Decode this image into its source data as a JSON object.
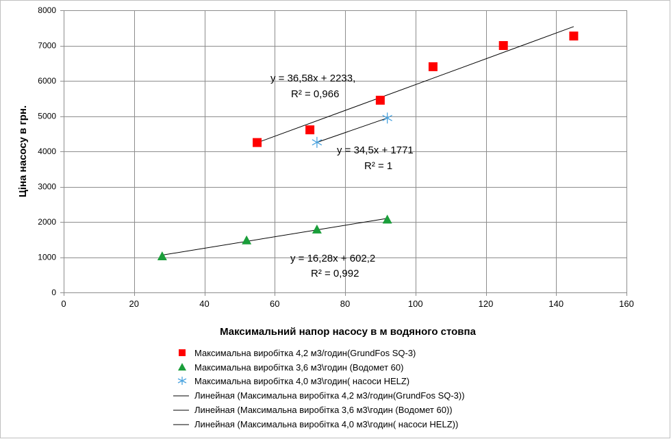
{
  "chart_data": {
    "type": "scatter",
    "xlabel": "Максимальний напор насосу в м водяного стовпа",
    "ylabel": "Ціна насосу  в грн.",
    "xlim": [
      0,
      160
    ],
    "ylim": [
      0,
      8000
    ],
    "xticks": [
      0,
      20,
      40,
      60,
      80,
      100,
      120,
      140,
      160
    ],
    "yticks": [
      0,
      1000,
      2000,
      3000,
      4000,
      5000,
      6000,
      7000,
      8000
    ],
    "grid": true,
    "legend_position": "bottom",
    "series": [
      {
        "name": "Максимальна виробітка 4,2 м3/годин(GrundFos SQ-3)",
        "marker": "square",
        "color": "#ff0000",
        "points": [
          [
            55,
            4250
          ],
          [
            70,
            4610
          ],
          [
            90,
            5450
          ],
          [
            105,
            6400
          ],
          [
            125,
            7000
          ],
          [
            145,
            7270
          ]
        ],
        "trend": {
          "name": "Линейная (Максимальна виробітка 4,2 м3/годин(GrundFos SQ-3))",
          "slope": 36.58,
          "intercept": 2233,
          "x_range": [
            55,
            145
          ],
          "equation": "y = 36,58x + 2233,",
          "r2": "R² = 0,966"
        }
      },
      {
        "name": "Максимальна виробітка 3,6 м3\\годин (Водомет 60)",
        "marker": "triangle",
        "color": "#1a9e3a",
        "points": [
          [
            28,
            1030
          ],
          [
            52,
            1480
          ],
          [
            72,
            1790
          ],
          [
            92,
            2070
          ]
        ],
        "trend": {
          "name": "Линейная (Максимальна виробітка 3,6 м3\\годин (Водомет 60))",
          "slope": 16.28,
          "intercept": 602.2,
          "x_range": [
            28,
            92
          ],
          "equation": "y = 16,28x + 602,2",
          "r2": "R² = 0,992"
        }
      },
      {
        "name": "Максимальна виробітка 4,0 м3\\годин( насоси HELZ)",
        "marker": "asterisk",
        "color": "#4aa3df",
        "points": [
          [
            72,
            4255
          ],
          [
            92,
            4945
          ]
        ],
        "trend": {
          "name": "Линейная (Максимальна виробітка 4,0 м3\\годин( насоси HELZ))",
          "slope": 34.5,
          "intercept": 1771,
          "x_range": [
            72,
            92
          ],
          "equation": "y = 34,5x + 1771",
          "r2": "R² = 1"
        }
      }
    ]
  }
}
